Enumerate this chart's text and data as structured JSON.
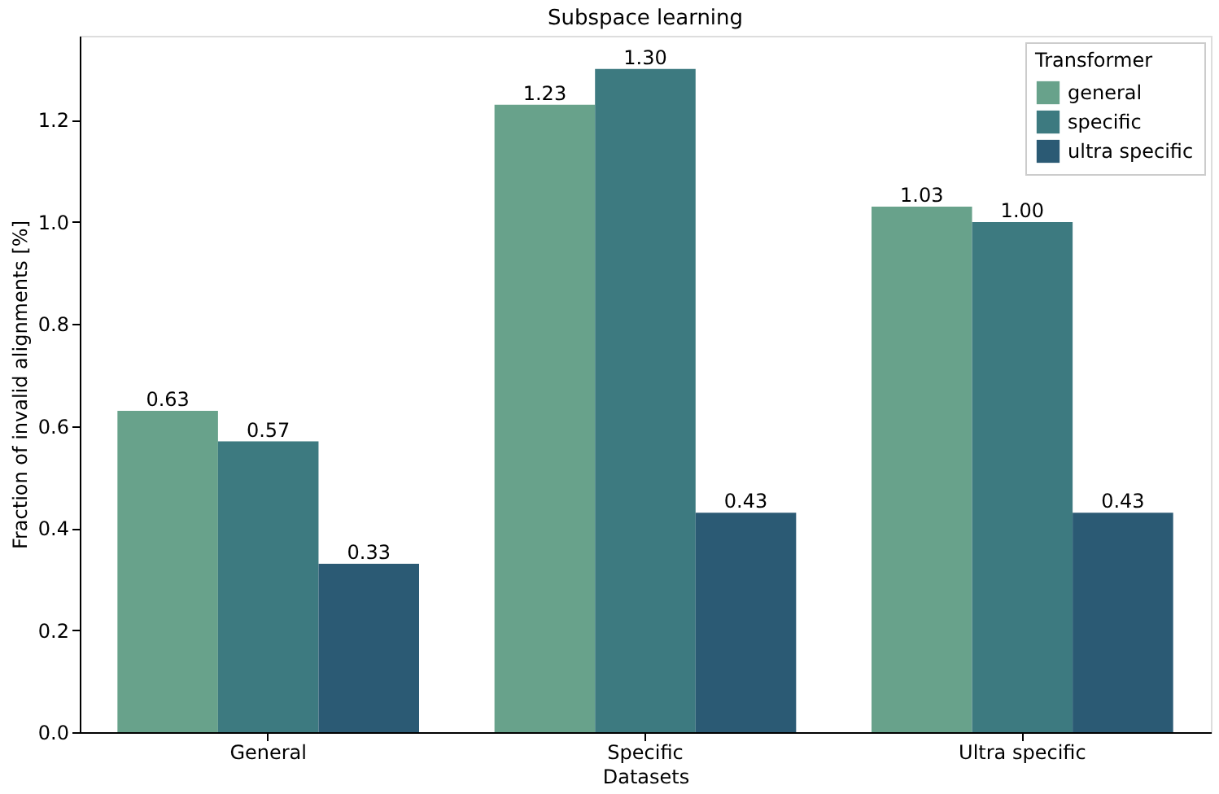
{
  "chart_data": {
    "type": "bar",
    "title": "Subspace learning",
    "xlabel": "Datasets",
    "ylabel": "Fraction of invalid alignments [%]",
    "legend_title": "Transformer",
    "categories": [
      "General",
      "Specific",
      "Ultra specific"
    ],
    "series": [
      {
        "name": "general",
        "color": "#68a28b",
        "values": [
          0.63,
          1.23,
          1.03
        ],
        "value_labels": [
          "0.63",
          "1.23",
          "1.03"
        ]
      },
      {
        "name": "specific",
        "color": "#3d7a80",
        "values": [
          0.57,
          1.3,
          1.0
        ],
        "value_labels": [
          "0.57",
          "1.30",
          "1.00"
        ]
      },
      {
        "name": "ultra specific",
        "color": "#2b5a74",
        "values": [
          0.33,
          0.43,
          0.43
        ],
        "value_labels": [
          "0.33",
          "0.43",
          "0.43"
        ]
      }
    ],
    "ylim": [
      0,
      1.365
    ],
    "yticks": [
      {
        "value": 0,
        "label": "0.0"
      },
      0.2,
      0.4,
      0.6,
      0.8,
      {
        "value": 1,
        "label": "1.0"
      },
      1.2
    ],
    "grid": false,
    "legend": "top right"
  }
}
